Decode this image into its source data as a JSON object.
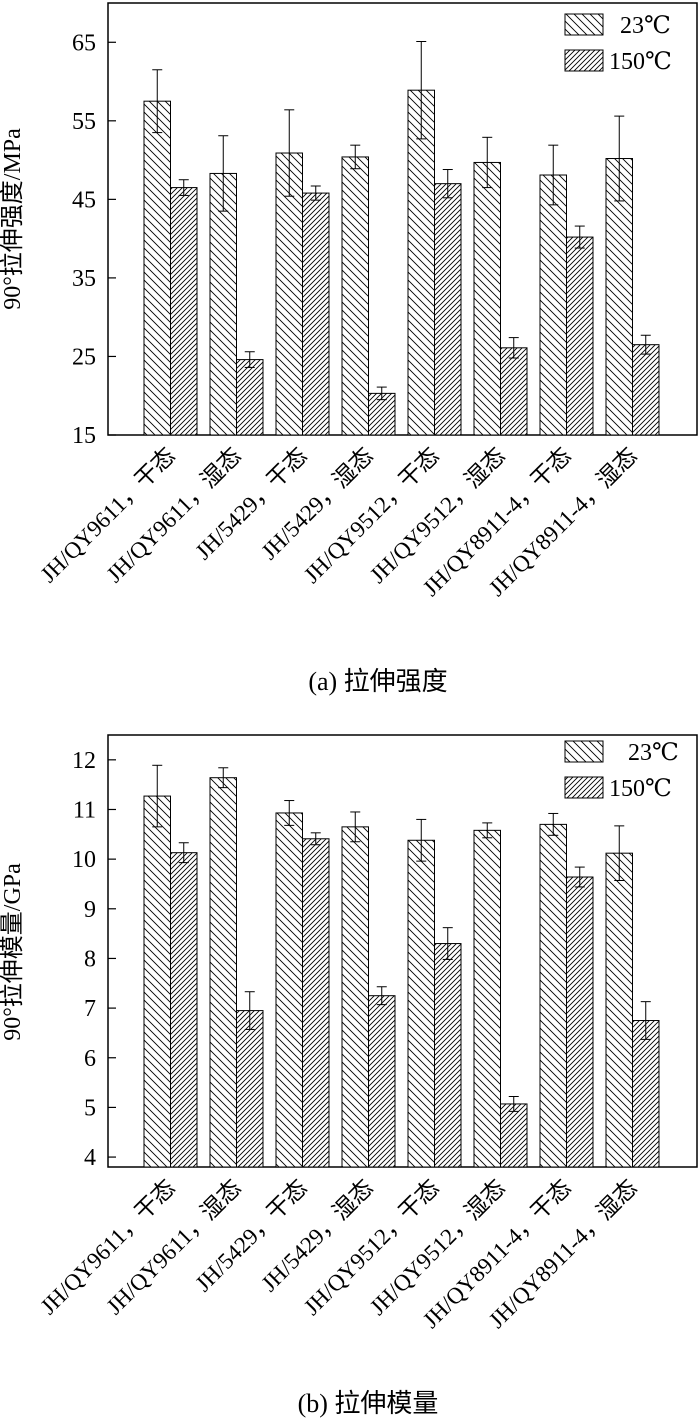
{
  "chart_data": [
    {
      "type": "bar",
      "title": "",
      "caption": "(a) 拉伸强度",
      "xlabel": "",
      "ylabel": "90°拉伸强度/MPa",
      "ylim": [
        15,
        70
      ],
      "yticks": [
        15,
        25,
        35,
        45,
        55,
        65
      ],
      "grid": false,
      "legend_position": "top-right",
      "categories": [
        "JH/QY9611，干态",
        "JH/QY9611，湿态",
        "JH/5429，干态",
        "JH/5429，湿态",
        "JH/QY9512，干态",
        "JH/QY9512，湿态",
        "JH/QY8911-4，干态",
        "JH/QY8911-4，湿态"
      ],
      "series": [
        {
          "name": "23℃",
          "color": "#000000",
          "values": [
            57.5,
            48.3,
            50.9,
            50.4,
            58.9,
            49.7,
            48.1,
            50.2
          ],
          "errors": [
            4.0,
            4.8,
            5.5,
            1.5,
            6.2,
            3.2,
            3.8,
            5.4
          ]
        },
        {
          "name": "150℃",
          "color": "#000000",
          "values": [
            46.5,
            24.6,
            45.8,
            20.3,
            47.0,
            26.1,
            40.2,
            26.5
          ],
          "errors": [
            1.0,
            1.0,
            0.9,
            0.8,
            1.8,
            1.3,
            1.4,
            1.2
          ]
        }
      ]
    },
    {
      "type": "bar",
      "title": "",
      "caption": "(b) 拉伸模量",
      "xlabel": "",
      "ylabel": "90°拉伸模量/GPa",
      "ylim": [
        3.8,
        12.5
      ],
      "yticks": [
        4,
        5,
        6,
        7,
        8,
        9,
        10,
        11,
        12
      ],
      "grid": false,
      "legend_position": "top-right",
      "categories": [
        "JH/QY9611，干态",
        "JH/QY9611，湿态",
        "JH/5429，干态",
        "JH/5429，湿态",
        "JH/QY9512，干态",
        "JH/QY9512，湿态",
        "JH/QY8911-4，干态",
        "JH/QY8911-4，湿态"
      ],
      "series": [
        {
          "name": "23℃",
          "color": "#000000",
          "values": [
            11.27,
            11.64,
            10.93,
            10.65,
            10.38,
            10.58,
            10.7,
            10.12
          ],
          "errors": [
            0.62,
            0.2,
            0.25,
            0.3,
            0.42,
            0.15,
            0.22,
            0.55
          ]
        },
        {
          "name": "150℃",
          "color": "#000000",
          "values": [
            10.13,
            6.95,
            10.41,
            7.25,
            8.3,
            5.07,
            9.64,
            6.75
          ],
          "errors": [
            0.2,
            0.38,
            0.12,
            0.18,
            0.32,
            0.15,
            0.2,
            0.38
          ]
        }
      ]
    }
  ]
}
